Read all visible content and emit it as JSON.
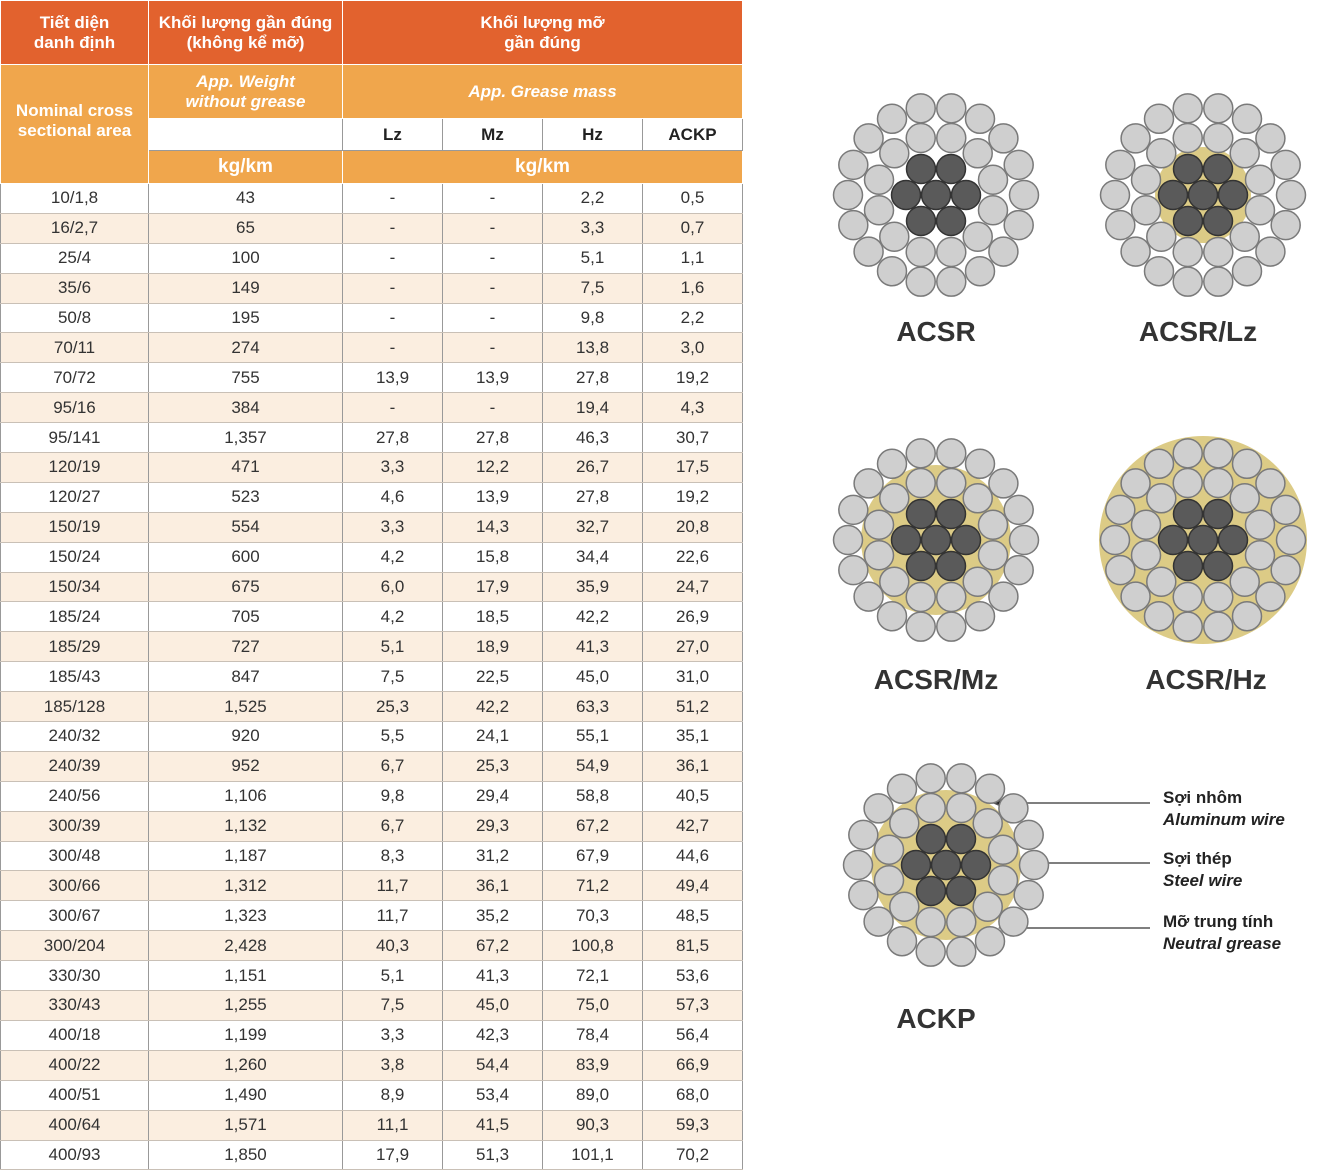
{
  "table": {
    "header": {
      "col1_vi": [
        "Tiết diện",
        "danh định"
      ],
      "col2_vi": [
        "Khối lượng gần đúng",
        "(không kể mỡ)"
      ],
      "col3_vi": [
        "Khối lượng mỡ",
        "gần đúng"
      ],
      "col1_en": [
        "Nominal cross",
        "sectional area"
      ],
      "col2_en": [
        "App. Weight",
        "without grease"
      ],
      "col3_en": "App. Grease mass",
      "sub": [
        "Lz",
        "Mz",
        "Hz",
        "ACKP"
      ],
      "unit_weight": "kg/km",
      "unit_grease": "kg/km"
    },
    "rows": [
      [
        "10/1,8",
        "43",
        "-",
        "-",
        "2,2",
        "0,5"
      ],
      [
        "16/2,7",
        "65",
        "-",
        "-",
        "3,3",
        "0,7"
      ],
      [
        "25/4",
        "100",
        "-",
        "-",
        "5,1",
        "1,1"
      ],
      [
        "35/6",
        "149",
        "-",
        "-",
        "7,5",
        "1,6"
      ],
      [
        "50/8",
        "195",
        "-",
        "-",
        "9,8",
        "2,2"
      ],
      [
        "70/11",
        "274",
        "-",
        "-",
        "13,8",
        "3,0"
      ],
      [
        "70/72",
        "755",
        "13,9",
        "13,9",
        "27,8",
        "19,2"
      ],
      [
        "95/16",
        "384",
        "-",
        "-",
        "19,4",
        "4,3"
      ],
      [
        "95/141",
        "1,357",
        "27,8",
        "27,8",
        "46,3",
        "30,7"
      ],
      [
        "120/19",
        "471",
        "3,3",
        "12,2",
        "26,7",
        "17,5"
      ],
      [
        "120/27",
        "523",
        "4,6",
        "13,9",
        "27,8",
        "19,2"
      ],
      [
        "150/19",
        "554",
        "3,3",
        "14,3",
        "32,7",
        "20,8"
      ],
      [
        "150/24",
        "600",
        "4,2",
        "15,8",
        "34,4",
        "22,6"
      ],
      [
        "150/34",
        "675",
        "6,0",
        "17,9",
        "35,9",
        "24,7"
      ],
      [
        "185/24",
        "705",
        "4,2",
        "18,5",
        "42,2",
        "26,9"
      ],
      [
        "185/29",
        "727",
        "5,1",
        "18,9",
        "41,3",
        "27,0"
      ],
      [
        "185/43",
        "847",
        "7,5",
        "22,5",
        "45,0",
        "31,0"
      ],
      [
        "185/128",
        "1,525",
        "25,3",
        "42,2",
        "63,3",
        "51,2"
      ],
      [
        "240/32",
        "920",
        "5,5",
        "24,1",
        "55,1",
        "35,1"
      ],
      [
        "240/39",
        "952",
        "6,7",
        "25,3",
        "54,9",
        "36,1"
      ],
      [
        "240/56",
        "1,106",
        "9,8",
        "29,4",
        "58,8",
        "40,5"
      ],
      [
        "300/39",
        "1,132",
        "6,7",
        "29,3",
        "67,2",
        "42,7"
      ],
      [
        "300/48",
        "1,187",
        "8,3",
        "31,2",
        "67,9",
        "44,6"
      ],
      [
        "300/66",
        "1,312",
        "11,7",
        "36,1",
        "71,2",
        "49,4"
      ],
      [
        "300/67",
        "1,323",
        "11,7",
        "35,2",
        "70,3",
        "48,5"
      ],
      [
        "300/204",
        "2,428",
        "40,3",
        "67,2",
        "100,8",
        "81,5"
      ],
      [
        "330/30",
        "1,151",
        "5,1",
        "41,3",
        "72,1",
        "53,6"
      ],
      [
        "330/43",
        "1,255",
        "7,5",
        "45,0",
        "75,0",
        "57,3"
      ],
      [
        "400/18",
        "1,199",
        "3,3",
        "42,3",
        "78,4",
        "56,4"
      ],
      [
        "400/22",
        "1,260",
        "3,8",
        "54,4",
        "83,9",
        "66,9"
      ],
      [
        "400/51",
        "1,490",
        "8,9",
        "53,4",
        "89,0",
        "68,0"
      ],
      [
        "400/64",
        "1,571",
        "11,1",
        "41,5",
        "90,3",
        "59,3"
      ],
      [
        "400/93",
        "1,850",
        "17,9",
        "51,3",
        "101,1",
        "70,2"
      ]
    ]
  },
  "cables": [
    "ACSR",
    "ACSR/Lz",
    "ACSR/Mz",
    "ACSR/Hz",
    "ACKP"
  ],
  "annotations": [
    {
      "vi": "Sợi nhôm",
      "en": "Aluminum wire"
    },
    {
      "vi": "Sợi thép",
      "en": "Steel wire"
    },
    {
      "vi": "Mỡ trung tính",
      "en": "Neutral grease"
    }
  ]
}
